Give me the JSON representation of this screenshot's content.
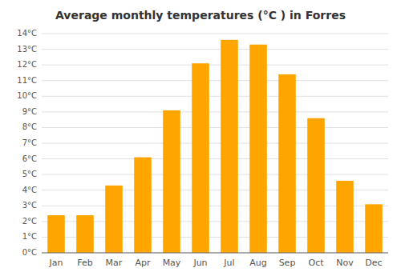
{
  "chart_data": {
    "type": "bar",
    "title": "Average monthly temperatures (°C ) in Forres",
    "categories": [
      "Jan",
      "Feb",
      "Mar",
      "Apr",
      "May",
      "Jun",
      "Jul",
      "Aug",
      "Sep",
      "Oct",
      "Nov",
      "Dec"
    ],
    "values": [
      2.4,
      2.4,
      4.3,
      6.1,
      9.1,
      12.1,
      13.6,
      13.3,
      11.4,
      8.6,
      4.6,
      3.1
    ],
    "color": "#FFA500",
    "ylim": [
      0,
      14
    ],
    "yticks": [
      {
        "value": 0,
        "label": "0°C"
      },
      {
        "value": 1,
        "label": "1°C"
      },
      {
        "value": 2,
        "label": "2°C"
      },
      {
        "value": 3,
        "label": "3°C"
      },
      {
        "value": 4,
        "label": "4°C"
      },
      {
        "value": 5,
        "label": "5°C"
      },
      {
        "value": 6,
        "label": "6°C"
      },
      {
        "value": 7,
        "label": "7°C"
      },
      {
        "value": 8,
        "label": "8°C"
      },
      {
        "value": 9,
        "label": "9°C"
      },
      {
        "value": 10,
        "label": "10°C"
      },
      {
        "value": 11,
        "label": "11°C"
      },
      {
        "value": 12,
        "label": "12°C"
      },
      {
        "value": 13,
        "label": "13°C"
      },
      {
        "value": 14,
        "label": "14°C"
      }
    ],
    "grid": true
  }
}
